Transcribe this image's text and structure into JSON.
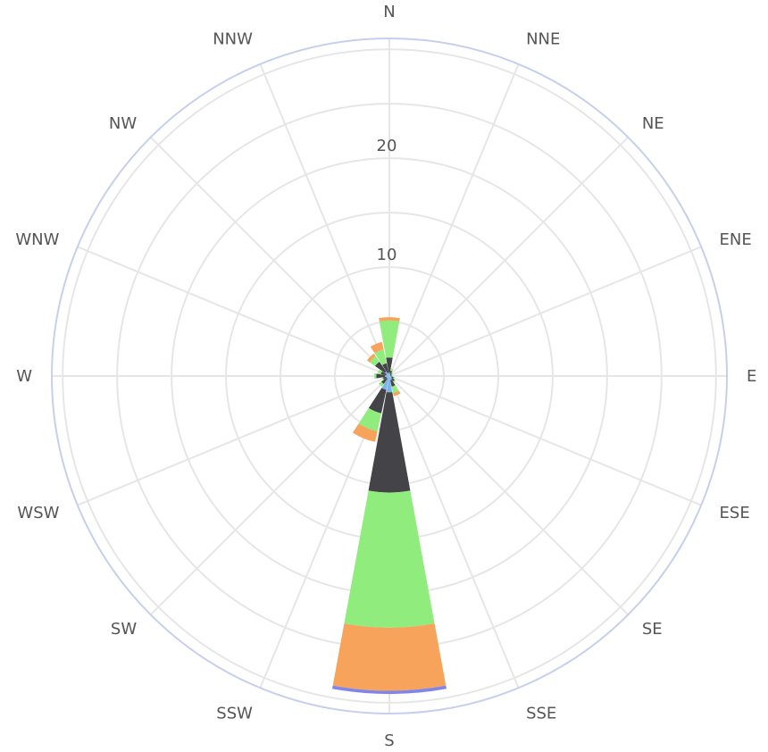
{
  "chart_data": {
    "type": "windrose",
    "directions": [
      "N",
      "NNE",
      "NE",
      "ENE",
      "E",
      "ESE",
      "SE",
      "SSE",
      "S",
      "SSW",
      "SW",
      "WSW",
      "W",
      "WNW",
      "NW",
      "NNW"
    ],
    "radial_ticks": [
      "10",
      "20"
    ],
    "r_max": 31,
    "grid": true,
    "colors": [
      "#7cb5ec",
      "#434348",
      "#90ed7d",
      "#f7a35c",
      "#8085e9"
    ],
    "outer_ring_color": "#c6d0ee",
    "series": [
      {
        "values": [
          0.3,
          0.2,
          0.1,
          0.1,
          0.1,
          0.2,
          0.3,
          0.4,
          1.5,
          1.3,
          0.3,
          0.3,
          0.4,
          0.3,
          0.5,
          0.3
        ]
      },
      {
        "values": [
          1.4,
          0.3,
          0.2,
          0.1,
          0.1,
          0.2,
          0.3,
          0.6,
          9.2,
          2.2,
          0.6,
          0.3,
          0.8,
          0.5,
          1.1,
          0.9
        ]
      },
      {
        "values": [
          3.4,
          0.2,
          0.1,
          0.1,
          0.1,
          0.1,
          0.1,
          0.6,
          12.4,
          1.7,
          0.3,
          0.1,
          0.2,
          0.3,
          0.6,
          1.3
        ]
      },
      {
        "values": [
          0.3,
          0.0,
          0.0,
          0.0,
          0.0,
          0.0,
          0.0,
          0.3,
          5.8,
          1.0,
          0.0,
          0.0,
          0.0,
          0.0,
          0.3,
          0.7
        ]
      },
      {
        "values": [
          0.0,
          0.0,
          0.0,
          0.0,
          0.0,
          0.0,
          0.0,
          0.0,
          0.3,
          0.0,
          0.0,
          0.0,
          0.0,
          0.0,
          0.0,
          0.0
        ]
      }
    ]
  }
}
